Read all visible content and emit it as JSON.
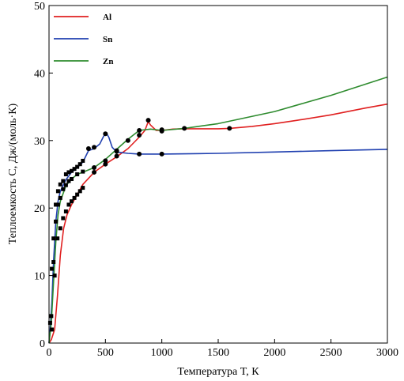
{
  "chart_data": {
    "type": "line",
    "title": "",
    "xlabel": "Температура T, К",
    "ylabel": "Теплоемкость C, Дж/(моль·К)",
    "xlim": [
      0,
      3000
    ],
    "ylim": [
      0,
      50
    ],
    "x_ticks": [
      "0",
      "500",
      "1000",
      "1500",
      "2000",
      "2500",
      "3000"
    ],
    "y_ticks": [
      "0",
      "10",
      "20",
      "30",
      "40",
      "50"
    ],
    "grid": false,
    "legend_position": "top-left",
    "series": [
      {
        "name": "Al",
        "color": "#e02020",
        "line": [
          [
            0,
            0
          ],
          [
            20,
            0.5
          ],
          [
            50,
            2
          ],
          [
            75,
            7
          ],
          [
            100,
            13
          ],
          [
            130,
            17
          ],
          [
            160,
            19
          ],
          [
            200,
            20.5
          ],
          [
            250,
            22
          ],
          [
            300,
            23.5
          ],
          [
            400,
            25.3
          ],
          [
            500,
            26.5
          ],
          [
            600,
            27.6
          ],
          [
            700,
            28.8
          ],
          [
            800,
            30.5
          ],
          [
            850,
            31.5
          ],
          [
            880,
            32.8
          ],
          [
            900,
            32.3
          ],
          [
            950,
            31.5
          ],
          [
            1000,
            31.5
          ],
          [
            1100,
            31.7
          ],
          [
            1200,
            31.75
          ],
          [
            1300,
            31.75
          ],
          [
            1500,
            31.75
          ],
          [
            1600,
            31.8
          ],
          [
            1800,
            32.1
          ],
          [
            2000,
            32.5
          ],
          [
            2200,
            33.0
          ],
          [
            2500,
            33.8
          ],
          [
            2800,
            34.8
          ],
          [
            3000,
            35.4
          ]
        ],
        "points": [
          [
            25,
            2
          ],
          [
            50,
            10
          ],
          [
            75,
            15.5
          ],
          [
            100,
            17
          ],
          [
            125,
            18.5
          ],
          [
            150,
            19.5
          ],
          [
            175,
            20.5
          ],
          [
            200,
            21
          ],
          [
            225,
            21.5
          ],
          [
            250,
            22
          ],
          [
            275,
            22.5
          ],
          [
            300,
            23
          ],
          [
            400,
            25.3
          ],
          [
            500,
            26.5
          ],
          [
            600,
            27.7
          ],
          [
            800,
            30.8
          ],
          [
            880,
            33
          ],
          [
            1000,
            31.4
          ],
          [
            1600,
            31.8
          ]
        ]
      },
      {
        "name": "Sn",
        "color": "#2040b0",
        "line": [
          [
            0,
            0
          ],
          [
            10,
            2
          ],
          [
            25,
            6
          ],
          [
            40,
            12
          ],
          [
            60,
            18
          ],
          [
            80,
            21
          ],
          [
            100,
            22.5
          ],
          [
            150,
            24.2
          ],
          [
            200,
            25.3
          ],
          [
            250,
            26
          ],
          [
            300,
            26.8
          ],
          [
            350,
            28.5
          ],
          [
            400,
            28.8
          ],
          [
            450,
            29.5
          ],
          [
            480,
            30.5
          ],
          [
            505,
            31.2
          ],
          [
            530,
            30.5
          ],
          [
            560,
            29
          ],
          [
            600,
            28.3
          ],
          [
            700,
            28.1
          ],
          [
            800,
            28.0
          ],
          [
            1000,
            28.0
          ],
          [
            1500,
            28.1
          ],
          [
            2000,
            28.3
          ],
          [
            2500,
            28.5
          ],
          [
            3000,
            28.7
          ]
        ],
        "points": [
          [
            10,
            3
          ],
          [
            25,
            11
          ],
          [
            40,
            15.5
          ],
          [
            60,
            20.5
          ],
          [
            80,
            22.5
          ],
          [
            100,
            23.5
          ],
          [
            125,
            24
          ],
          [
            150,
            25
          ],
          [
            175,
            25.3
          ],
          [
            200,
            25.5
          ],
          [
            225,
            25.8
          ],
          [
            250,
            26.1
          ],
          [
            275,
            26.5
          ],
          [
            300,
            27
          ],
          [
            350,
            28.8
          ],
          [
            400,
            29
          ],
          [
            500,
            31
          ],
          [
            600,
            28.4
          ],
          [
            800,
            28
          ],
          [
            1000,
            28
          ]
        ]
      },
      {
        "name": "Zn",
        "color": "#2e8b2e",
        "line": [
          [
            0,
            0
          ],
          [
            20,
            3
          ],
          [
            40,
            9
          ],
          [
            60,
            15
          ],
          [
            80,
            19
          ],
          [
            100,
            21
          ],
          [
            150,
            23.3
          ],
          [
            200,
            24.3
          ],
          [
            250,
            25
          ],
          [
            300,
            25.3
          ],
          [
            400,
            26
          ],
          [
            500,
            27.2
          ],
          [
            600,
            28.7
          ],
          [
            700,
            30.2
          ],
          [
            800,
            31.5
          ],
          [
            900,
            31.7
          ],
          [
            1000,
            31.5
          ],
          [
            1200,
            31.8
          ],
          [
            1500,
            32.5
          ],
          [
            2000,
            34.3
          ],
          [
            2500,
            36.7
          ],
          [
            3000,
            39.4
          ]
        ],
        "points": [
          [
            20,
            4
          ],
          [
            40,
            12
          ],
          [
            60,
            18
          ],
          [
            80,
            20.5
          ],
          [
            100,
            21.5
          ],
          [
            125,
            22.8
          ],
          [
            150,
            23.4
          ],
          [
            175,
            24
          ],
          [
            200,
            24.3
          ],
          [
            250,
            25
          ],
          [
            300,
            25.4
          ],
          [
            400,
            26
          ],
          [
            500,
            27
          ],
          [
            600,
            28.5
          ],
          [
            700,
            30
          ],
          [
            800,
            31.5
          ],
          [
            1000,
            31.6
          ],
          [
            1200,
            31.8
          ]
        ]
      }
    ]
  }
}
